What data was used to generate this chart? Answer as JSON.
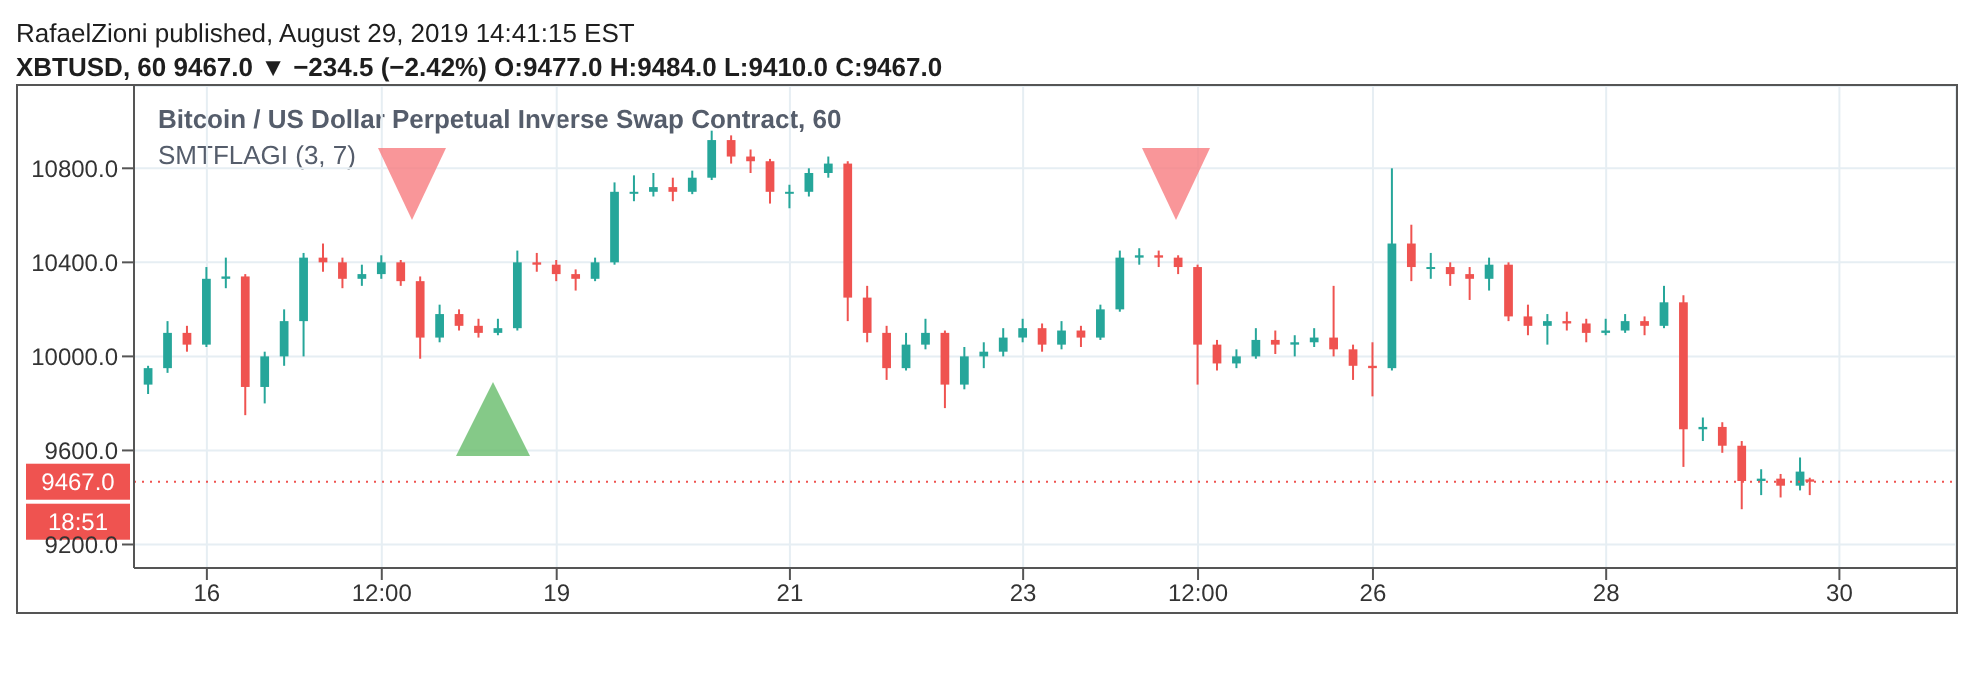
{
  "chart_data": {
    "type": "candlestick",
    "title": "Bitcoin / US Dollar Perpetual Inverse Swap Contract, 60",
    "subtitle": "SMTFLAGI (3, 7)",
    "annotations": [
      "RafaelZioni published, August 29, 2019 14:41:15 EST",
      "XBTUSD, 60  9467.0 ▼ −234.5 (−2.42%) O:9477.0 H:9484.0 L:9410.0 C:9467.0",
      "18:51"
    ],
    "x": [
      "2019-08-15T12:00",
      "2019-08-15T16:00",
      "2019-08-15T20:00",
      "2019-08-16T00:00",
      "2019-08-16T04:00",
      "2019-08-16T08:00",
      "2019-08-16T12:00",
      "2019-08-16T16:00",
      "2019-08-16T20:00",
      "2019-08-17T00:00",
      "2019-08-17T04:00",
      "2019-08-17T08:00",
      "2019-08-17T12:00",
      "2019-08-17T16:00",
      "2019-08-17T20:00",
      "2019-08-18T00:00",
      "2019-08-18T04:00",
      "2019-08-18T08:00",
      "2019-08-18T12:00",
      "2019-08-18T16:00",
      "2019-08-18T20:00",
      "2019-08-19T00:00",
      "2019-08-19T04:00",
      "2019-08-19T08:00",
      "2019-08-19T12:00",
      "2019-08-19T16:00",
      "2019-08-19T20:00",
      "2019-08-20T00:00",
      "2019-08-20T04:00",
      "2019-08-20T08:00",
      "2019-08-20T12:00",
      "2019-08-20T16:00",
      "2019-08-20T20:00",
      "2019-08-21T00:00",
      "2019-08-21T04:00",
      "2019-08-21T08:00",
      "2019-08-21T12:00",
      "2019-08-21T16:00",
      "2019-08-21T20:00",
      "2019-08-22T00:00",
      "2019-08-22T04:00",
      "2019-08-22T08:00",
      "2019-08-22T12:00",
      "2019-08-22T16:00",
      "2019-08-22T20:00",
      "2019-08-23T00:00",
      "2019-08-23T04:00",
      "2019-08-23T08:00",
      "2019-08-23T12:00",
      "2019-08-23T16:00",
      "2019-08-23T20:00",
      "2019-08-24T00:00",
      "2019-08-24T04:00",
      "2019-08-24T08:00",
      "2019-08-24T12:00",
      "2019-08-24T16:00",
      "2019-08-24T20:00",
      "2019-08-25T00:00",
      "2019-08-25T04:00",
      "2019-08-25T08:00",
      "2019-08-25T12:00",
      "2019-08-25T16:00",
      "2019-08-25T20:00",
      "2019-08-26T00:00",
      "2019-08-26T04:00",
      "2019-08-26T08:00",
      "2019-08-26T12:00",
      "2019-08-26T16:00",
      "2019-08-26T20:00",
      "2019-08-27T00:00",
      "2019-08-27T04:00",
      "2019-08-27T08:00",
      "2019-08-27T12:00",
      "2019-08-27T16:00",
      "2019-08-27T20:00",
      "2019-08-28T00:00",
      "2019-08-28T04:00",
      "2019-08-28T08:00",
      "2019-08-28T12:00",
      "2019-08-28T16:00",
      "2019-08-28T20:00",
      "2019-08-29T00:00",
      "2019-08-29T04:00",
      "2019-08-29T08:00",
      "2019-08-29T12:00",
      "2019-08-29T16:00",
      "2019-08-29T18:00"
    ],
    "ohlc": [
      [
        9880,
        9960,
        9840,
        9950
      ],
      [
        9950,
        10150,
        9930,
        10100
      ],
      [
        10100,
        10130,
        10020,
        10050
      ],
      [
        10050,
        10380,
        10040,
        10330
      ],
      [
        10330,
        10420,
        10290,
        10340
      ],
      [
        10340,
        10350,
        9750,
        9870
      ],
      [
        9870,
        10020,
        9800,
        10000
      ],
      [
        10000,
        10200,
        9960,
        10150
      ],
      [
        10150,
        10440,
        10000,
        10420
      ],
      [
        10420,
        10480,
        10360,
        10400
      ],
      [
        10400,
        10420,
        10290,
        10330
      ],
      [
        10330,
        10390,
        10300,
        10350
      ],
      [
        10350,
        10430,
        10330,
        10400
      ],
      [
        10400,
        10410,
        10300,
        10320
      ],
      [
        10320,
        10340,
        9990,
        10080
      ],
      [
        10080,
        10220,
        10060,
        10180
      ],
      [
        10180,
        10200,
        10110,
        10130
      ],
      [
        10130,
        10160,
        10080,
        10100
      ],
      [
        10100,
        10160,
        10090,
        10120
      ],
      [
        10120,
        10450,
        10110,
        10400
      ],
      [
        10400,
        10440,
        10360,
        10390
      ],
      [
        10390,
        10410,
        10320,
        10350
      ],
      [
        10350,
        10370,
        10280,
        10330
      ],
      [
        10330,
        10420,
        10320,
        10400
      ],
      [
        10400,
        10740,
        10390,
        10700
      ],
      [
        10700,
        10770,
        10660,
        10700
      ],
      [
        10700,
        10780,
        10680,
        10720
      ],
      [
        10720,
        10760,
        10660,
        10700
      ],
      [
        10700,
        10790,
        10690,
        10760
      ],
      [
        10760,
        10960,
        10750,
        10920
      ],
      [
        10920,
        10940,
        10820,
        10850
      ],
      [
        10850,
        10880,
        10780,
        10830
      ],
      [
        10830,
        10840,
        10650,
        10700
      ],
      [
        10700,
        10730,
        10630,
        10700
      ],
      [
        10700,
        10800,
        10680,
        10780
      ],
      [
        10780,
        10850,
        10760,
        10820
      ],
      [
        10820,
        10830,
        10150,
        10250
      ],
      [
        10250,
        10300,
        10060,
        10100
      ],
      [
        10100,
        10130,
        9900,
        9950
      ],
      [
        9950,
        10100,
        9940,
        10050
      ],
      [
        10050,
        10160,
        10030,
        10100
      ],
      [
        10100,
        10110,
        9780,
        9880
      ],
      [
        9880,
        10040,
        9860,
        10000
      ],
      [
        10000,
        10060,
        9950,
        10020
      ],
      [
        10020,
        10120,
        10000,
        10080
      ],
      [
        10080,
        10160,
        10060,
        10120
      ],
      [
        10120,
        10140,
        10020,
        10050
      ],
      [
        10050,
        10150,
        10030,
        10110
      ],
      [
        10110,
        10130,
        10040,
        10080
      ],
      [
        10080,
        10220,
        10070,
        10200
      ],
      [
        10200,
        10450,
        10190,
        10420
      ],
      [
        10420,
        10460,
        10390,
        10430
      ],
      [
        10430,
        10450,
        10380,
        10420
      ],
      [
        10420,
        10430,
        10350,
        10380
      ],
      [
        10380,
        10390,
        9880,
        10050
      ],
      [
        10050,
        10070,
        9940,
        9970
      ],
      [
        9970,
        10030,
        9950,
        10000
      ],
      [
        10000,
        10120,
        9990,
        10070
      ],
      [
        10070,
        10110,
        10010,
        10050
      ],
      [
        10050,
        10090,
        10000,
        10060
      ],
      [
        10060,
        10120,
        10040,
        10080
      ],
      [
        10080,
        10300,
        10000,
        10030
      ],
      [
        10030,
        10050,
        9900,
        9960
      ],
      [
        9960,
        10060,
        9830,
        9950
      ],
      [
        9950,
        10800,
        9940,
        10480
      ],
      [
        10480,
        10560,
        10320,
        10380
      ],
      [
        10380,
        10440,
        10330,
        10380
      ],
      [
        10380,
        10400,
        10300,
        10350
      ],
      [
        10350,
        10380,
        10240,
        10330
      ],
      [
        10330,
        10420,
        10280,
        10390
      ],
      [
        10390,
        10400,
        10150,
        10170
      ],
      [
        10170,
        10220,
        10090,
        10130
      ],
      [
        10130,
        10180,
        10050,
        10150
      ],
      [
        10150,
        10190,
        10110,
        10140
      ],
      [
        10140,
        10160,
        10060,
        10100
      ],
      [
        10100,
        10160,
        10090,
        10110
      ],
      [
        10110,
        10180,
        10100,
        10150
      ],
      [
        10150,
        10170,
        10090,
        10130
      ],
      [
        10130,
        10300,
        10120,
        10230
      ],
      [
        10230,
        10260,
        9530,
        9690
      ],
      [
        9690,
        9740,
        9640,
        9700
      ],
      [
        9700,
        9720,
        9590,
        9620
      ],
      [
        9620,
        9640,
        9350,
        9470
      ],
      [
        9470,
        9520,
        9410,
        9480
      ],
      [
        9480,
        9500,
        9400,
        9450
      ],
      [
        9450,
        9570,
        9430,
        9510
      ],
      [
        9477,
        9484,
        9410,
        9467
      ]
    ],
    "xlim": [
      "2019-08-15T09:00",
      "2019-08-31T00:00"
    ],
    "xticks": [
      {
        "value": "2019-08-16",
        "label": "16"
      },
      {
        "value": "2019-08-17T12:00",
        "label": "12:00"
      },
      {
        "value": "2019-08-19",
        "label": "19"
      },
      {
        "value": "2019-08-21",
        "label": "21"
      },
      {
        "value": "2019-08-23",
        "label": "23"
      },
      {
        "value": "2019-08-24T12:00",
        "label": "12:00"
      },
      {
        "value": "2019-08-26",
        "label": "26"
      },
      {
        "value": "2019-08-28",
        "label": "28"
      },
      {
        "value": "2019-08-30",
        "label": "30"
      }
    ],
    "ylim": [
      9100,
      11150
    ],
    "yticks": [
      {
        "value": 9200,
        "label": "9200.0"
      },
      {
        "value": 9600,
        "label": "9600.0"
      },
      {
        "value": 10000,
        "label": "10000.0"
      },
      {
        "value": 10400,
        "label": "10400.0"
      },
      {
        "value": 10800,
        "label": "10800.0"
      }
    ],
    "ref_lines": [
      {
        "axis": "y",
        "value": 9467,
        "label": "9467.0",
        "color": "#ef5350",
        "line_style": "dotted"
      }
    ],
    "grid": true
  }
}
